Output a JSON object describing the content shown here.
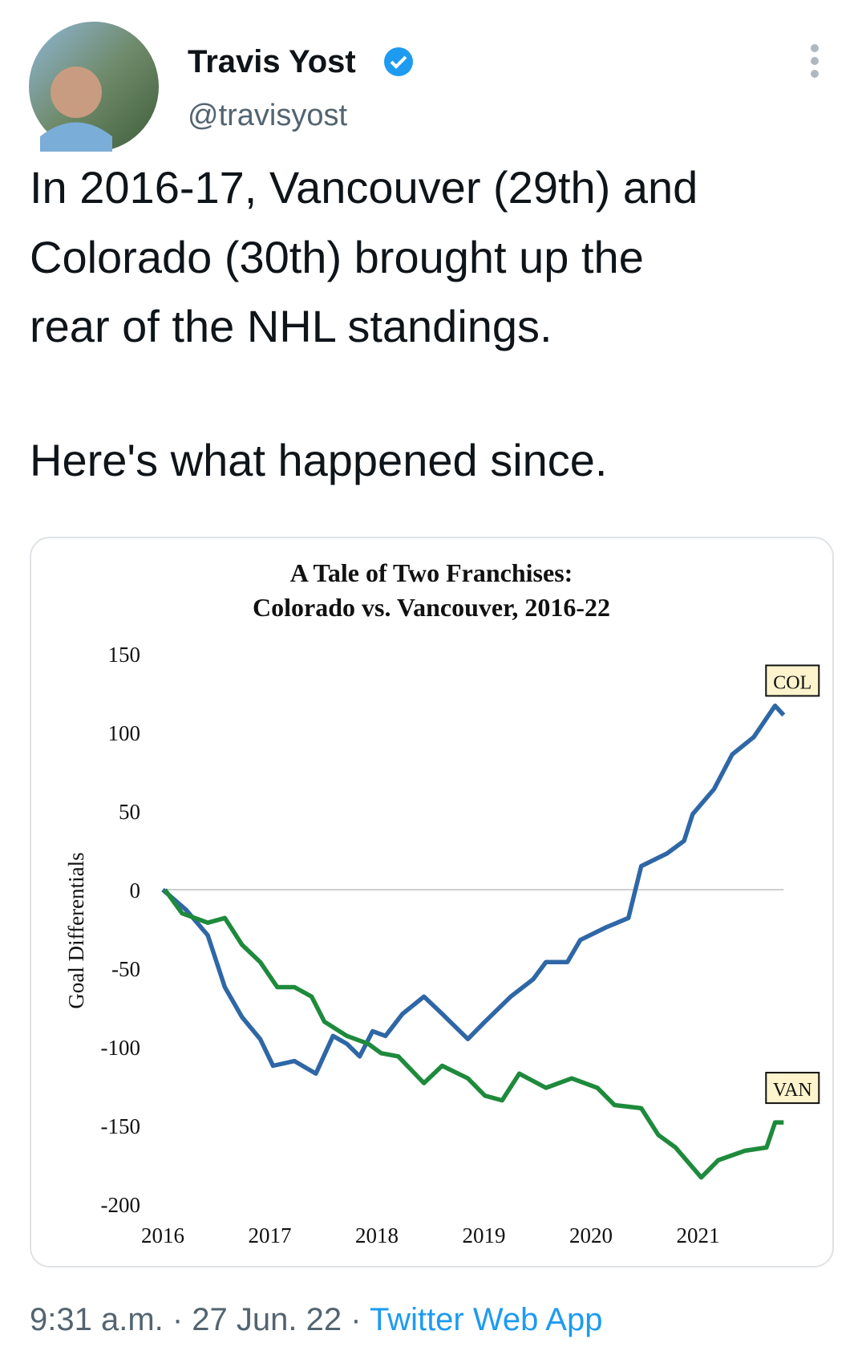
{
  "tweet": {
    "author": {
      "name": "Travis Yost",
      "handle": "@travisyost"
    },
    "text_lines": [
      "In 2016-17, Vancouver (29th) and",
      "Colorado (30th) brought up the",
      "rear of the NHL standings.",
      "Here's what happened since."
    ],
    "footer": {
      "timestamp": "9:31 a.m. · 27 Jun. 22 ·",
      "source": "Twitter Web App"
    }
  },
  "chart_data": {
    "type": "line",
    "title": [
      "A Tale of Two Franchises:",
      "Colorado vs. Vancouver, 2016-22"
    ],
    "y_label": "Goal Differentials",
    "xlim": [
      2016,
      2021.8
    ],
    "xticks": [
      2016,
      2017,
      2018,
      2019,
      2020,
      2021
    ],
    "ylim": [
      -200,
      150
    ],
    "yticks": [
      150,
      100,
      50,
      0,
      -50,
      -100,
      -150,
      -200
    ],
    "zero_line": true,
    "series": [
      {
        "name": "COL",
        "color": "#2f67a6",
        "x": [
          2016.0,
          2016.22,
          2016.42,
          2016.58,
          2016.74,
          2016.91,
          2017.03,
          2017.23,
          2017.43,
          2017.59,
          2017.72,
          2017.84,
          2017.96,
          2018.08,
          2018.24,
          2018.44,
          2018.61,
          2018.85,
          2019.01,
          2019.25,
          2019.46,
          2019.58,
          2019.78,
          2019.9,
          2020.14,
          2020.35,
          2020.47,
          2020.71,
          2020.87,
          2020.95,
          2021.15,
          2021.32,
          2021.52,
          2021.72,
          2021.8
        ],
        "values": [
          0,
          -13,
          -29,
          -62,
          -81,
          -95,
          -112,
          -109,
          -117,
          -93,
          -98,
          -106,
          -90,
          -93,
          -79,
          -68,
          -79,
          -95,
          -84,
          -68,
          -57,
          -46,
          -46,
          -32,
          -24,
          -18,
          15,
          23,
          31,
          48,
          64,
          86,
          97,
          117,
          111
        ]
      },
      {
        "name": "VAN",
        "color": "#1e8a3c",
        "x": [
          2016.02,
          2016.18,
          2016.42,
          2016.58,
          2016.74,
          2016.91,
          2017.07,
          2017.23,
          2017.39,
          2017.51,
          2017.72,
          2017.92,
          2018.04,
          2018.2,
          2018.44,
          2018.61,
          2018.85,
          2019.01,
          2019.17,
          2019.33,
          2019.58,
          2019.82,
          2020.06,
          2020.22,
          2020.47,
          2020.63,
          2020.79,
          2021.03,
          2021.19,
          2021.44,
          2021.64,
          2021.72,
          2021.8
        ],
        "values": [
          0,
          -15,
          -21,
          -18,
          -35,
          -46,
          -62,
          -62,
          -68,
          -84,
          -93,
          -98,
          -104,
          -106,
          -123,
          -112,
          -120,
          -131,
          -134,
          -117,
          -126,
          -120,
          -126,
          -137,
          -139,
          -156,
          -164,
          -183,
          -172,
          -166,
          -164,
          -148,
          -148
        ]
      }
    ]
  }
}
